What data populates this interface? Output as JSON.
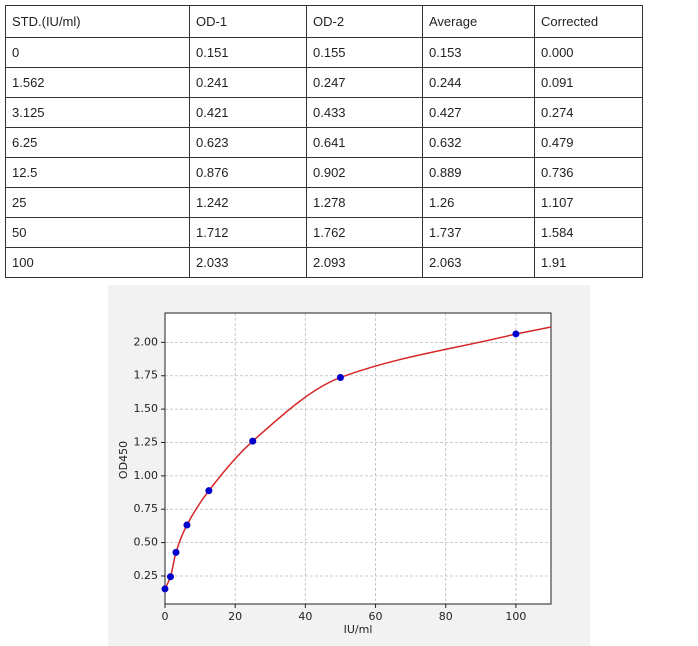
{
  "table": {
    "header": [
      "STD.(IU/ml)",
      "OD-1",
      "OD-2",
      "Average",
      "Corrected"
    ],
    "rows": [
      [
        "0",
        "0.151",
        "0.155",
        "0.153",
        "0.000"
      ],
      [
        "1.562",
        "0.241",
        "0.247",
        "0.244",
        "0.091"
      ],
      [
        "3.125",
        "0.421",
        "0.433",
        "0.427",
        "0.274"
      ],
      [
        "6.25",
        "0.623",
        "0.641",
        "0.632",
        "0.479"
      ],
      [
        "12.5",
        "0.876",
        "0.902",
        "0.889",
        "0.736"
      ],
      [
        "25",
        "1.242",
        "1.278",
        "1.26",
        "1.107"
      ],
      [
        "50",
        "1.712",
        "1.762",
        "1.737",
        "1.584"
      ],
      [
        "100",
        "2.033",
        "2.093",
        "2.063",
        "1.91"
      ]
    ]
  },
  "chart_data": {
    "type": "scatter",
    "xlabel": "IU/ml",
    "ylabel": "OD450",
    "x": [
      0,
      1.562,
      3.125,
      6.25,
      12.5,
      25,
      50,
      100
    ],
    "series": [
      {
        "color": "#0000cc",
        "values": [
          0.153,
          0.244,
          0.427,
          0.632,
          0.889,
          1.26,
          1.737,
          2.063
        ]
      }
    ],
    "fit_color": "#d62728",
    "xlim": [
      0,
      110
    ],
    "xticks": [
      0,
      20,
      40,
      60,
      80,
      100
    ],
    "ylim": [
      0.04,
      2.22
    ],
    "yticks": [
      0.25,
      {
        "value": 0.5,
        "label": "0.50"
      },
      0.75,
      {
        "value": 1,
        "label": "1.00"
      },
      1.25,
      {
        "value": 1.5,
        "label": "1.50"
      },
      1.75,
      {
        "value": 2,
        "label": "2.00"
      }
    ],
    "grid": true
  }
}
